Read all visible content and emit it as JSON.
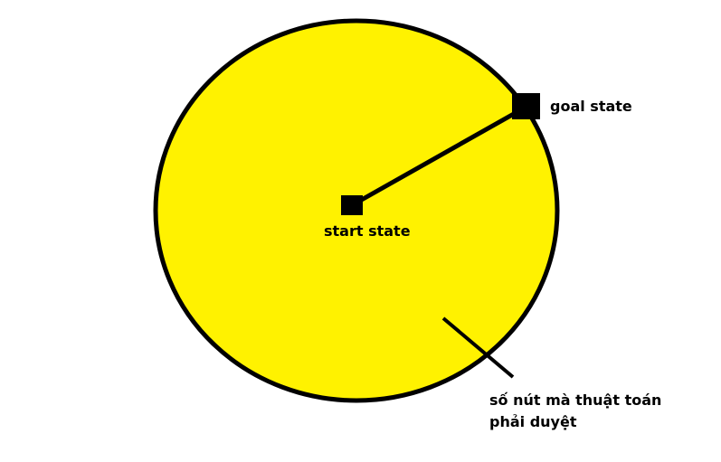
{
  "diagram": {
    "circle_fill": "#FFF200",
    "stroke_color": "#000000",
    "background": "#FFFFFF",
    "start_label": "start state",
    "goal_label": "goal state",
    "note_line1": "số nút mà thuật toán",
    "note_line2": "phải duyệt"
  }
}
